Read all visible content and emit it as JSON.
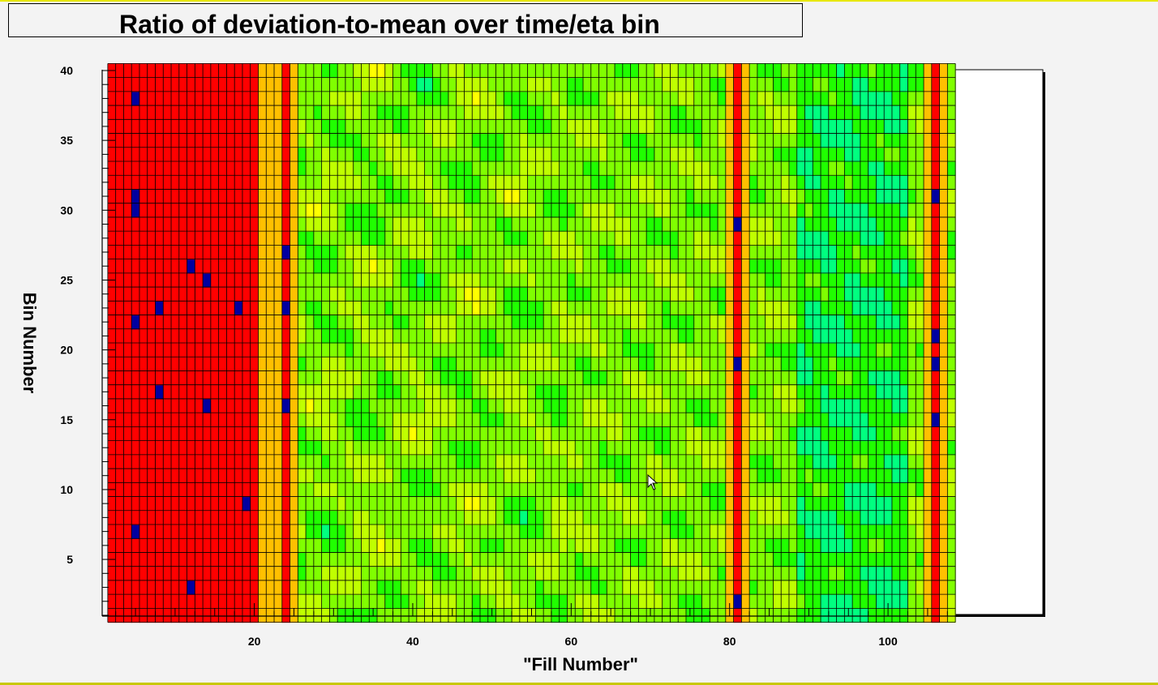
{
  "chart_data": {
    "type": "heatmap",
    "title": "Ratio of deviation-to-mean over time/eta bin",
    "xlabel": "\"Fill Number\"",
    "ylabel": "Bin Number",
    "xlim": [
      1,
      109
    ],
    "ylim": [
      1,
      40
    ],
    "x_ticks": [
      20,
      40,
      60,
      80,
      100
    ],
    "y_ticks": [
      5,
      10,
      15,
      20,
      25,
      30,
      35,
      40
    ],
    "grid": true,
    "colormap": [
      "#0000a0",
      "#2020ff",
      "#00a0ff",
      "#00ffff",
      "#00ff80",
      "#20ff00",
      "#80ff00",
      "#c0ff00",
      "#ffff00",
      "#ffc000",
      "#ff8000",
      "#ff3000",
      "#ff0000"
    ],
    "x_range_cells": [
      2,
      108
    ],
    "y_range_cells": [
      1,
      40
    ],
    "hot_columns": [
      24,
      81,
      106
    ],
    "left_hot_region_end": 20,
    "low_value_spots": [
      {
        "x": 5,
        "y": 38
      },
      {
        "x": 5,
        "y": 30
      },
      {
        "x": 5,
        "y": 31
      },
      {
        "x": 12,
        "y": 26
      },
      {
        "x": 14,
        "y": 25
      },
      {
        "x": 8,
        "y": 23
      },
      {
        "x": 5,
        "y": 22
      },
      {
        "x": 18,
        "y": 23
      },
      {
        "x": 8,
        "y": 17
      },
      {
        "x": 14,
        "y": 16
      },
      {
        "x": 19,
        "y": 9
      },
      {
        "x": 5,
        "y": 7
      },
      {
        "x": 12,
        "y": 3
      },
      {
        "x": 24,
        "y": 27
      },
      {
        "x": 24,
        "y": 23
      },
      {
        "x": 24,
        "y": 16
      },
      {
        "x": 81,
        "y": 2
      },
      {
        "x": 81,
        "y": 29
      },
      {
        "x": 81,
        "y": 19
      },
      {
        "x": 106,
        "y": 31
      },
      {
        "x": 106,
        "y": 21
      },
      {
        "x": 106,
        "y": 19
      },
      {
        "x": 106,
        "y": 15
      }
    ]
  }
}
